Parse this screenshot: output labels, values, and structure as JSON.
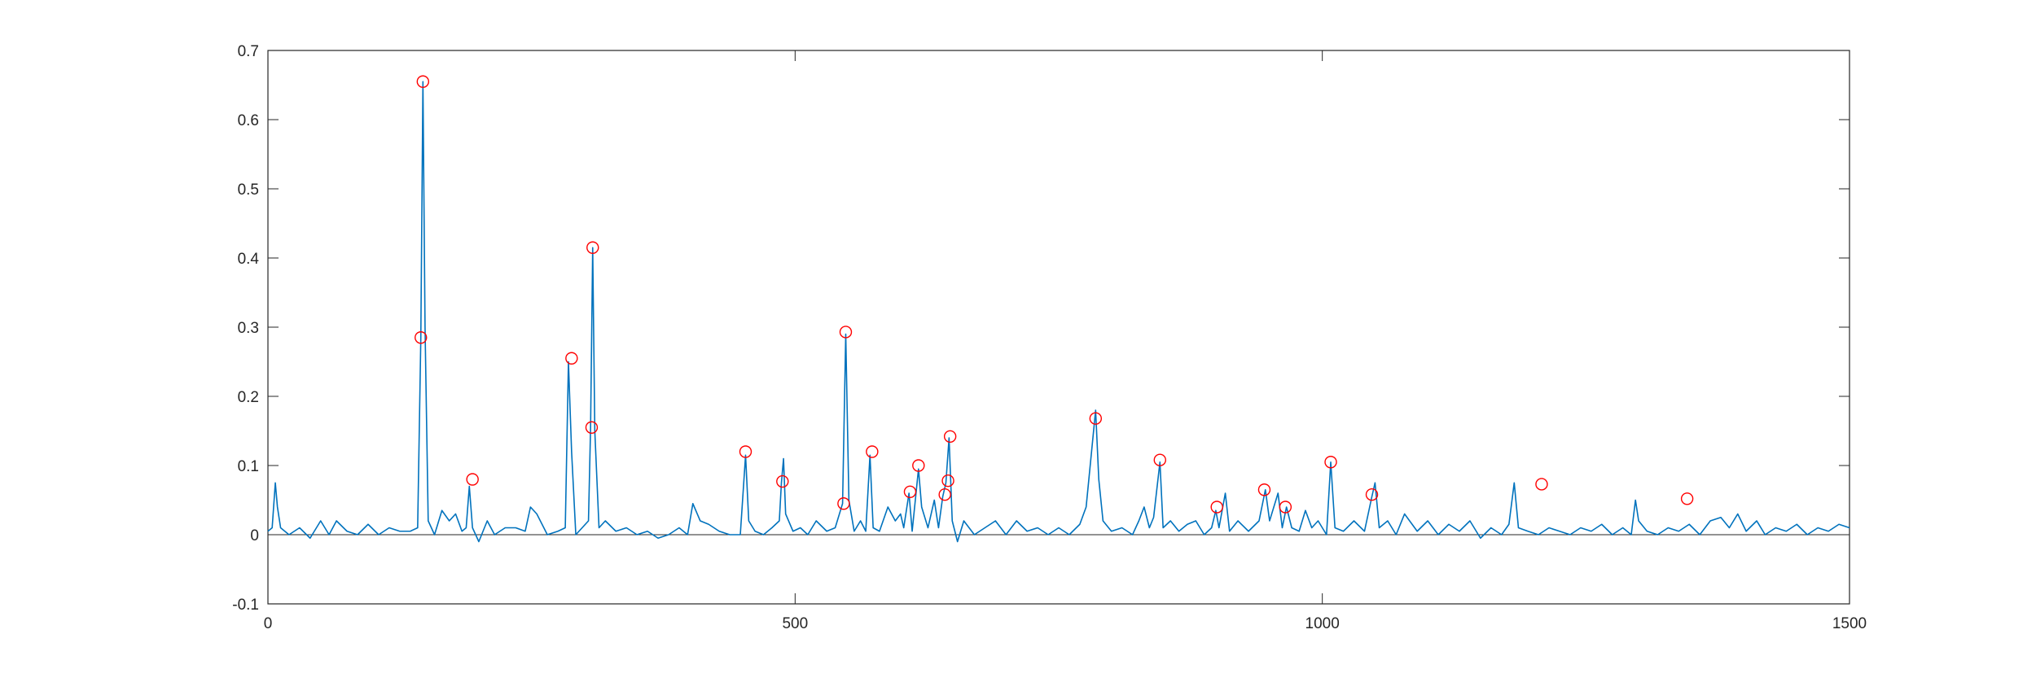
{
  "chart_data": {
    "type": "line",
    "title": "",
    "xlabel": "",
    "ylabel": "",
    "xlim": [
      0,
      1500
    ],
    "ylim": [
      -0.1,
      0.7
    ],
    "xticks": [
      0,
      500,
      1000,
      1500
    ],
    "xtick_labels": [
      "0",
      "500",
      "1000",
      "1500"
    ],
    "yticks": [
      -0.1,
      0,
      0.1,
      0.2,
      0.3,
      0.4,
      0.5,
      0.6,
      0.7
    ],
    "ytick_labels": [
      "-0.1",
      "0",
      "0.1",
      "0.2",
      "0.3",
      "0.4",
      "0.5",
      "0.6",
      "0.7"
    ],
    "grid": false,
    "colors": {
      "signal": "#0072BD",
      "peaks": "#FF0000",
      "axes": "#262626"
    },
    "series": [
      {
        "marker": "none",
        "points": [
          [
            0,
            0.005
          ],
          [
            4,
            0.01
          ],
          [
            7,
            0.075
          ],
          [
            9,
            0.04
          ],
          [
            12,
            0.01
          ],
          [
            20,
            0.0
          ],
          [
            30,
            0.01
          ],
          [
            40,
            -0.005
          ],
          [
            50,
            0.02
          ],
          [
            58,
            0.0
          ],
          [
            65,
            0.02
          ],
          [
            75,
            0.005
          ],
          [
            85,
            0.0
          ],
          [
            95,
            0.015
          ],
          [
            105,
            0.0
          ],
          [
            115,
            0.01
          ],
          [
            125,
            0.005
          ],
          [
            135,
            0.005
          ],
          [
            142,
            0.01
          ],
          [
            145,
            0.285
          ],
          [
            147,
            0.655
          ],
          [
            149,
            0.3
          ],
          [
            152,
            0.02
          ],
          [
            158,
            0.0
          ],
          [
            165,
            0.035
          ],
          [
            172,
            0.02
          ],
          [
            178,
            0.03
          ],
          [
            184,
            0.005
          ],
          [
            188,
            0.01
          ],
          [
            191,
            0.07
          ],
          [
            194,
            0.01
          ],
          [
            200,
            -0.01
          ],
          [
            208,
            0.02
          ],
          [
            215,
            0.0
          ],
          [
            225,
            0.01
          ],
          [
            235,
            0.01
          ],
          [
            244,
            0.005
          ],
          [
            249,
            0.04
          ],
          [
            255,
            0.03
          ],
          [
            265,
            0.0
          ],
          [
            275,
            0.005
          ],
          [
            282,
            0.01
          ],
          [
            285,
            0.25
          ],
          [
            288,
            0.12
          ],
          [
            292,
            0.0
          ],
          [
            298,
            0.01
          ],
          [
            304,
            0.02
          ],
          [
            306,
            0.155
          ],
          [
            308,
            0.415
          ],
          [
            310,
            0.15
          ],
          [
            314,
            0.01
          ],
          [
            320,
            0.02
          ],
          [
            330,
            0.005
          ],
          [
            340,
            0.01
          ],
          [
            350,
            0.0
          ],
          [
            360,
            0.005
          ],
          [
            370,
            -0.005
          ],
          [
            380,
            0.0
          ],
          [
            390,
            0.01
          ],
          [
            398,
            0.0
          ],
          [
            403,
            0.045
          ],
          [
            410,
            0.02
          ],
          [
            418,
            0.015
          ],
          [
            428,
            0.005
          ],
          [
            438,
            0.0
          ],
          [
            448,
            0.0
          ],
          [
            453,
            0.115
          ],
          [
            456,
            0.02
          ],
          [
            462,
            0.005
          ],
          [
            470,
            0.0
          ],
          [
            478,
            0.01
          ],
          [
            485,
            0.02
          ],
          [
            487,
            0.075
          ],
          [
            489,
            0.11
          ],
          [
            491,
            0.03
          ],
          [
            498,
            0.005
          ],
          [
            505,
            0.01
          ],
          [
            512,
            0.0
          ],
          [
            520,
            0.02
          ],
          [
            530,
            0.005
          ],
          [
            538,
            0.01
          ],
          [
            545,
            0.045
          ],
          [
            548,
            0.29
          ],
          [
            551,
            0.05
          ],
          [
            556,
            0.005
          ],
          [
            562,
            0.02
          ],
          [
            567,
            0.005
          ],
          [
            571,
            0.115
          ],
          [
            574,
            0.01
          ],
          [
            580,
            0.005
          ],
          [
            588,
            0.04
          ],
          [
            595,
            0.02
          ],
          [
            600,
            0.03
          ],
          [
            603,
            0.01
          ],
          [
            608,
            0.06
          ],
          [
            611,
            0.005
          ],
          [
            617,
            0.095
          ],
          [
            620,
            0.04
          ],
          [
            626,
            0.01
          ],
          [
            632,
            0.05
          ],
          [
            636,
            0.01
          ],
          [
            640,
            0.055
          ],
          [
            643,
            0.075
          ],
          [
            646,
            0.14
          ],
          [
            649,
            0.02
          ],
          [
            654,
            -0.01
          ],
          [
            660,
            0.02
          ],
          [
            670,
            0.0
          ],
          [
            680,
            0.01
          ],
          [
            690,
            0.02
          ],
          [
            700,
            0.0
          ],
          [
            710,
            0.02
          ],
          [
            720,
            0.005
          ],
          [
            730,
            0.01
          ],
          [
            740,
            0.0
          ],
          [
            750,
            0.01
          ],
          [
            760,
            0.0
          ],
          [
            770,
            0.015
          ],
          [
            776,
            0.04
          ],
          [
            785,
            0.18
          ],
          [
            788,
            0.08
          ],
          [
            792,
            0.02
          ],
          [
            800,
            0.005
          ],
          [
            810,
            0.01
          ],
          [
            820,
            0.0
          ],
          [
            826,
            0.02
          ],
          [
            831,
            0.04
          ],
          [
            836,
            0.01
          ],
          [
            840,
            0.025
          ],
          [
            846,
            0.105
          ],
          [
            849,
            0.01
          ],
          [
            856,
            0.02
          ],
          [
            864,
            0.005
          ],
          [
            872,
            0.015
          ],
          [
            880,
            0.02
          ],
          [
            888,
            0.0
          ],
          [
            895,
            0.01
          ],
          [
            899,
            0.035
          ],
          [
            902,
            0.01
          ],
          [
            908,
            0.06
          ],
          [
            912,
            0.005
          ],
          [
            920,
            0.02
          ],
          [
            930,
            0.005
          ],
          [
            940,
            0.02
          ],
          [
            946,
            0.065
          ],
          [
            950,
            0.02
          ],
          [
            958,
            0.06
          ],
          [
            962,
            0.01
          ],
          [
            966,
            0.04
          ],
          [
            971,
            0.01
          ],
          [
            978,
            0.005
          ],
          [
            984,
            0.035
          ],
          [
            990,
            0.01
          ],
          [
            996,
            0.02
          ],
          [
            1004,
            0.0
          ],
          [
            1008,
            0.105
          ],
          [
            1012,
            0.01
          ],
          [
            1020,
            0.005
          ],
          [
            1030,
            0.02
          ],
          [
            1040,
            0.005
          ],
          [
            1047,
            0.055
          ],
          [
            1050,
            0.075
          ],
          [
            1054,
            0.01
          ],
          [
            1062,
            0.02
          ],
          [
            1070,
            0.0
          ],
          [
            1078,
            0.03
          ],
          [
            1090,
            0.005
          ],
          [
            1100,
            0.02
          ],
          [
            1110,
            0.0
          ],
          [
            1120,
            0.015
          ],
          [
            1130,
            0.005
          ],
          [
            1140,
            0.02
          ],
          [
            1150,
            -0.005
          ],
          [
            1160,
            0.01
          ],
          [
            1170,
            0.0
          ],
          [
            1177,
            0.015
          ],
          [
            1182,
            0.075
          ],
          [
            1186,
            0.01
          ],
          [
            1195,
            0.005
          ],
          [
            1205,
            0.0
          ],
          [
            1215,
            0.01
          ],
          [
            1225,
            0.005
          ],
          [
            1235,
            0.0
          ],
          [
            1245,
            0.01
          ],
          [
            1255,
            0.005
          ],
          [
            1265,
            0.015
          ],
          [
            1275,
            0.0
          ],
          [
            1285,
            0.01
          ],
          [
            1293,
            0.0
          ],
          [
            1297,
            0.05
          ],
          [
            1300,
            0.02
          ],
          [
            1308,
            0.005
          ],
          [
            1318,
            0.0
          ],
          [
            1328,
            0.01
          ],
          [
            1338,
            0.005
          ],
          [
            1348,
            0.015
          ],
          [
            1358,
            0.0
          ],
          [
            1368,
            0.02
          ],
          [
            1378,
            0.025
          ],
          [
            1386,
            0.01
          ],
          [
            1394,
            0.03
          ],
          [
            1402,
            0.005
          ],
          [
            1412,
            0.02
          ],
          [
            1420,
            0.0
          ],
          [
            1430,
            0.01
          ],
          [
            1440,
            0.005
          ],
          [
            1450,
            0.015
          ],
          [
            1460,
            0.0
          ],
          [
            1470,
            0.01
          ],
          [
            1480,
            0.005
          ],
          [
            1490,
            0.015
          ],
          [
            1500,
            0.01
          ]
        ]
      },
      {
        "marker": "o",
        "points": [
          [
            147,
            0.655
          ],
          [
            145,
            0.285
          ],
          [
            194,
            0.08
          ],
          [
            288,
            0.255
          ],
          [
            307,
            0.155
          ],
          [
            308,
            0.415
          ],
          [
            453,
            0.12
          ],
          [
            488,
            0.077
          ],
          [
            546,
            0.045
          ],
          [
            548,
            0.293
          ],
          [
            573,
            0.12
          ],
          [
            609,
            0.062
          ],
          [
            617,
            0.1
          ],
          [
            642,
            0.058
          ],
          [
            645,
            0.078
          ],
          [
            647,
            0.142
          ],
          [
            785,
            0.168
          ],
          [
            846,
            0.108
          ],
          [
            900,
            0.04
          ],
          [
            945,
            0.065
          ],
          [
            965,
            0.04
          ],
          [
            1008,
            0.105
          ],
          [
            1047,
            0.058
          ],
          [
            1208,
            0.073
          ],
          [
            1346,
            0.052
          ]
        ]
      }
    ]
  }
}
